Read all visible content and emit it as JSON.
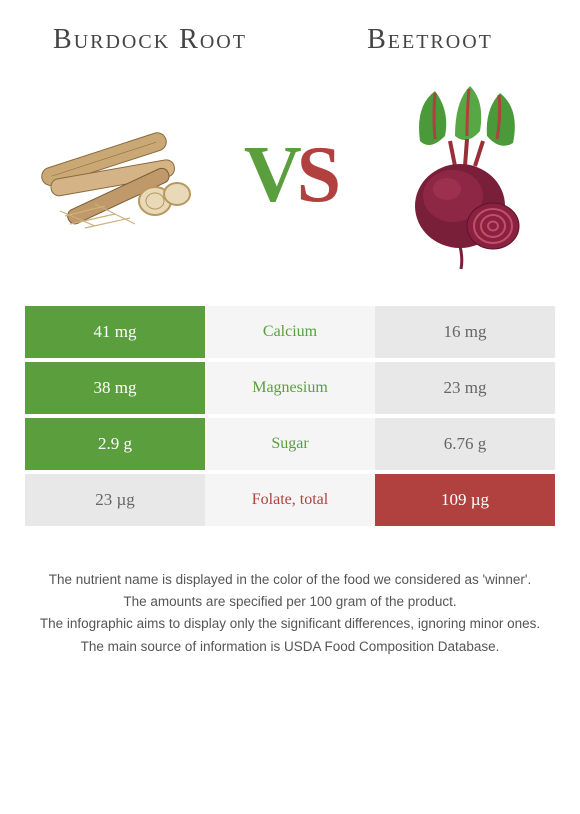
{
  "header": {
    "left_title": "Burdock Root",
    "right_title": "Beetroot",
    "vs_v": "V",
    "vs_s": "S"
  },
  "colors": {
    "left_accent": "#5a9e3d",
    "right_accent": "#b0413e",
    "row_mid_bg": "#f5f5f5",
    "loser_bg": "#e8e8e8",
    "loser_fg": "#666666",
    "page_bg": "#ffffff"
  },
  "typography": {
    "title_fontsize": 28,
    "vs_fontsize": 80,
    "cell_fontsize": 17,
    "nutrient_fontsize": 16,
    "footer_fontsize": 13.5
  },
  "rows": [
    {
      "nutrient": "Calcium",
      "left": "41 mg",
      "right": "16 mg",
      "winner": "left"
    },
    {
      "nutrient": "Magnesium",
      "left": "38 mg",
      "right": "23 mg",
      "winner": "left"
    },
    {
      "nutrient": "Sugar",
      "left": "2.9 g",
      "right": "6.76 g",
      "winner": "left"
    },
    {
      "nutrient": "Folate, total",
      "left": "23 µg",
      "right": "109 µg",
      "winner": "right"
    }
  ],
  "footer": {
    "l1": "The nutrient name is displayed in the color of the food we considered as 'winner'.",
    "l2": "The amounts are specified per 100 gram of the product.",
    "l3": "The infographic aims to display only the significant differences, ignoring minor ones.",
    "l4": "The main source of information is USDA Food Composition Database."
  },
  "images": {
    "left_alt": "burdock-root-illustration",
    "right_alt": "beetroot-illustration"
  }
}
